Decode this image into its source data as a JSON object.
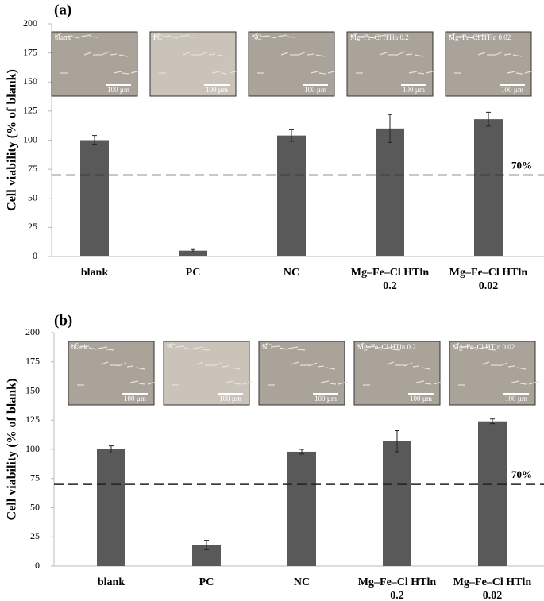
{
  "chart_data": [
    {
      "type": "bar",
      "panel_label": "(a)",
      "ylabel": "Cell viability (% of blank)",
      "categories": [
        "blank",
        "PC",
        "NC",
        "Mg–Fe–Cl HTln 0.2",
        "Mg–Fe–Cl HTln 0.02"
      ],
      "values": [
        100,
        5,
        104,
        110,
        118
      ],
      "errors": [
        4,
        1,
        5,
        12,
        6
      ],
      "color": "#595959",
      "ylim": [
        0,
        200
      ],
      "yticks": [
        0,
        25,
        50,
        75,
        100,
        125,
        150,
        175,
        200
      ],
      "reference_line": {
        "value": 70,
        "label": "70%"
      },
      "insets": [
        {
          "label": "blank",
          "scale": "100 µm"
        },
        {
          "label": "PC",
          "scale": "100 µm"
        },
        {
          "label": "NC",
          "scale": "100 µm"
        },
        {
          "label": "Mg–Fe–Cl HTln 0.2",
          "scale": "100 µm"
        },
        {
          "label": "Mg–Fe–Cl HTln 0.02",
          "scale": "100 µm"
        }
      ]
    },
    {
      "type": "bar",
      "panel_label": "(b)",
      "ylabel": "Cell viability (% of blank)",
      "categories": [
        "blank",
        "PC",
        "NC",
        "Mg–Fe–Cl HTln 0.2",
        "Mg–Fe–Cl HTln 0.02"
      ],
      "values": [
        100,
        18,
        98,
        107,
        124
      ],
      "errors": [
        3,
        4,
        2,
        9,
        2
      ],
      "color": "#595959",
      "ylim": [
        0,
        200
      ],
      "yticks": [
        0,
        25,
        50,
        75,
        100,
        125,
        150,
        175,
        200
      ],
      "reference_line": {
        "value": 70,
        "label": "70%"
      },
      "insets": [
        {
          "label": "blank",
          "scale": "100 µm"
        },
        {
          "label": "PC",
          "scale": "100 µm"
        },
        {
          "label": "NC",
          "scale": "100 µm"
        },
        {
          "label": "Mg–Fe–Cl HTln 0.2",
          "scale": "100 µm"
        },
        {
          "label": "Mg–Fe–Cl HTln 0.02",
          "scale": "100 µm"
        }
      ]
    }
  ]
}
